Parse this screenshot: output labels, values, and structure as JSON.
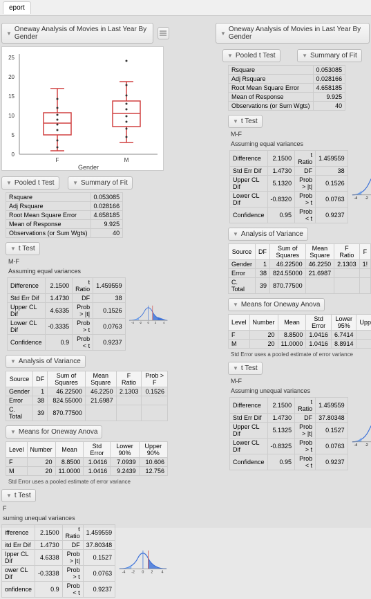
{
  "tab": "eport",
  "colors": {
    "bg": "#e0e0e0",
    "panel_bg": "#ffffff",
    "border": "#aaaaaa",
    "header_grad_top": "#f8f8f8",
    "header_grad_bot": "#e8e8e8",
    "box_red": "#d04040",
    "curve_blue": "#3a6fd8",
    "curve_fill": "#6aa0f0",
    "axis": "#888888"
  },
  "title_left": "Oneway Analysis of Movies in Last Year By Gender",
  "title_right": "Oneway Analysis of Movies in Last Year By Gender",
  "boxplot": {
    "x_label": "Gender",
    "categories": [
      "F",
      "M"
    ],
    "y_ticks": [
      0,
      5,
      10,
      15,
      20,
      25
    ],
    "F": {
      "min": 1,
      "q1": 5,
      "median": 8,
      "q3": 11,
      "max": 17,
      "n": 20
    },
    "M": {
      "min": 3,
      "q1": 7,
      "median": 11,
      "q3": 14,
      "max": 26,
      "n": 20
    }
  },
  "sections": {
    "pooled_t": "Pooled t Test",
    "summary_fit": "Summary of Fit",
    "t_test": "t Test",
    "anova": "Analysis of Variance",
    "means_oneway": "Means for Oneway Anova"
  },
  "summary_fit": {
    "rows": [
      [
        "Rsquare",
        "0.053085"
      ],
      [
        "Adj Rsquare",
        "0.028166"
      ],
      [
        "Root Mean Square Error",
        "4.658185"
      ],
      [
        "Mean of Response",
        "9.925"
      ],
      [
        "Observations (or Sum Wgts)",
        "40"
      ]
    ]
  },
  "ttest1": {
    "title": "M-F",
    "subtitle": "Assuming equal variances",
    "rows": [
      [
        "Difference",
        "2.1500",
        "t Ratio",
        "1.459559"
      ],
      [
        "Std Err Dif",
        "1.4730",
        "DF",
        "38"
      ],
      [
        "Upper CL Dif",
        "4.6335",
        "Prob > |t|",
        "0.1526"
      ],
      [
        "Lower CL Dif",
        "-0.3335",
        "Prob > t",
        "0.0763"
      ],
      [
        "Confidence",
        "0.9",
        "Prob < t",
        "0.9237"
      ]
    ],
    "curve_ticks": [
      "-4",
      "-2",
      "0",
      "2",
      "4"
    ]
  },
  "anova": {
    "headers": [
      "Source",
      "DF",
      "Sum of Squares",
      "Mean Square",
      "F Ratio",
      "Prob > F"
    ],
    "rows": [
      [
        "Gender",
        "1",
        "46.22500",
        "46.2250",
        "2.1303",
        "0.1526"
      ],
      [
        "Error",
        "38",
        "824.55000",
        "21.6987",
        "",
        ""
      ],
      [
        "C. Total",
        "39",
        "870.77500",
        "",
        "",
        ""
      ]
    ]
  },
  "means_oneway": {
    "headers": [
      "Level",
      "Number",
      "Mean",
      "Std Error",
      "Lower 90%",
      "Upper 90%"
    ],
    "rows": [
      [
        "F",
        "20",
        "8.8500",
        "1.0416",
        "7.0939",
        "10.606"
      ],
      [
        "M",
        "20",
        "11.0000",
        "1.0416",
        "9.2439",
        "12.756"
      ]
    ],
    "footnote": "Std Error uses a pooled estimate of error variance"
  },
  "ttest2": {
    "title": "F",
    "subtitle": "suming unequal variances",
    "rows": [
      [
        "ifference",
        "2.1500",
        "t Ratio",
        "1.459559"
      ],
      [
        "itd Err Dif",
        "1.4730",
        "DF",
        "37.80348"
      ],
      [
        "Ipper CL Dif",
        "4.6338",
        "Prob > |t|",
        "0.1527"
      ],
      [
        "ower CL Dif",
        "-0.3338",
        "Prob > t",
        "0.0763"
      ],
      [
        "onfidence",
        "0.9",
        "Prob < t",
        "0.9237"
      ]
    ],
    "curve_ticks": [
      "-4",
      "-2",
      "0",
      "2",
      "4"
    ]
  },
  "right_ttest1": {
    "title": "M-F",
    "subtitle": "Assuming equal variances",
    "rows": [
      [
        "Difference",
        "2.1500",
        "t Ratio",
        "1.459559"
      ],
      [
        "Std Err Dif",
        "1.4730",
        "DF",
        "38"
      ],
      [
        "Upper CL Dif",
        "5.1320",
        "Prob > |t|",
        "0.1526"
      ],
      [
        "Lower CL Dif",
        "-0.8320",
        "Prob > t",
        "0.0763"
      ],
      [
        "Confidence",
        "0.95",
        "Prob < t",
        "0.9237"
      ]
    ],
    "curve_ticks": [
      "-4",
      "-2"
    ]
  },
  "right_anova": {
    "headers": [
      "Source",
      "DF",
      "Sum of Squares",
      "Mean Square",
      "F Ratio",
      "F"
    ],
    "rows": [
      [
        "Gender",
        "1",
        "46.22500",
        "46.2250",
        "2.1303",
        "1!"
      ],
      [
        "Error",
        "38",
        "824.55000",
        "21.6987",
        "",
        ""
      ],
      [
        "C. Total",
        "39",
        "870.77500",
        "",
        "",
        ""
      ]
    ]
  },
  "right_means": {
    "headers": [
      "Level",
      "Number",
      "Mean",
      "Std Error",
      "Lower 95%",
      "Uppe"
    ],
    "rows": [
      [
        "F",
        "20",
        "8.8500",
        "1.0416",
        "6.7414",
        "1"
      ],
      [
        "M",
        "20",
        "11.0000",
        "1.0416",
        "8.8914",
        "1"
      ]
    ],
    "footnote": "Std Error uses a pooled estimate of error variance"
  },
  "right_ttest2": {
    "title": "M-F",
    "subtitle": "Assuming unequal variances",
    "rows": [
      [
        "Difference",
        "2.1500",
        "t Ratio",
        "1.459559"
      ],
      [
        "Std Err Dif",
        "1.4730",
        "DF",
        "37.80348"
      ],
      [
        "Upper CL Dif",
        "5.1325",
        "Prob > |t|",
        "0.1527"
      ],
      [
        "Lower CL Dif",
        "-0.8325",
        "Prob > t",
        "0.0763"
      ],
      [
        "Confidence",
        "0.95",
        "Prob < t",
        "0.9237"
      ]
    ],
    "curve_ticks": [
      "-4",
      "-2"
    ]
  }
}
